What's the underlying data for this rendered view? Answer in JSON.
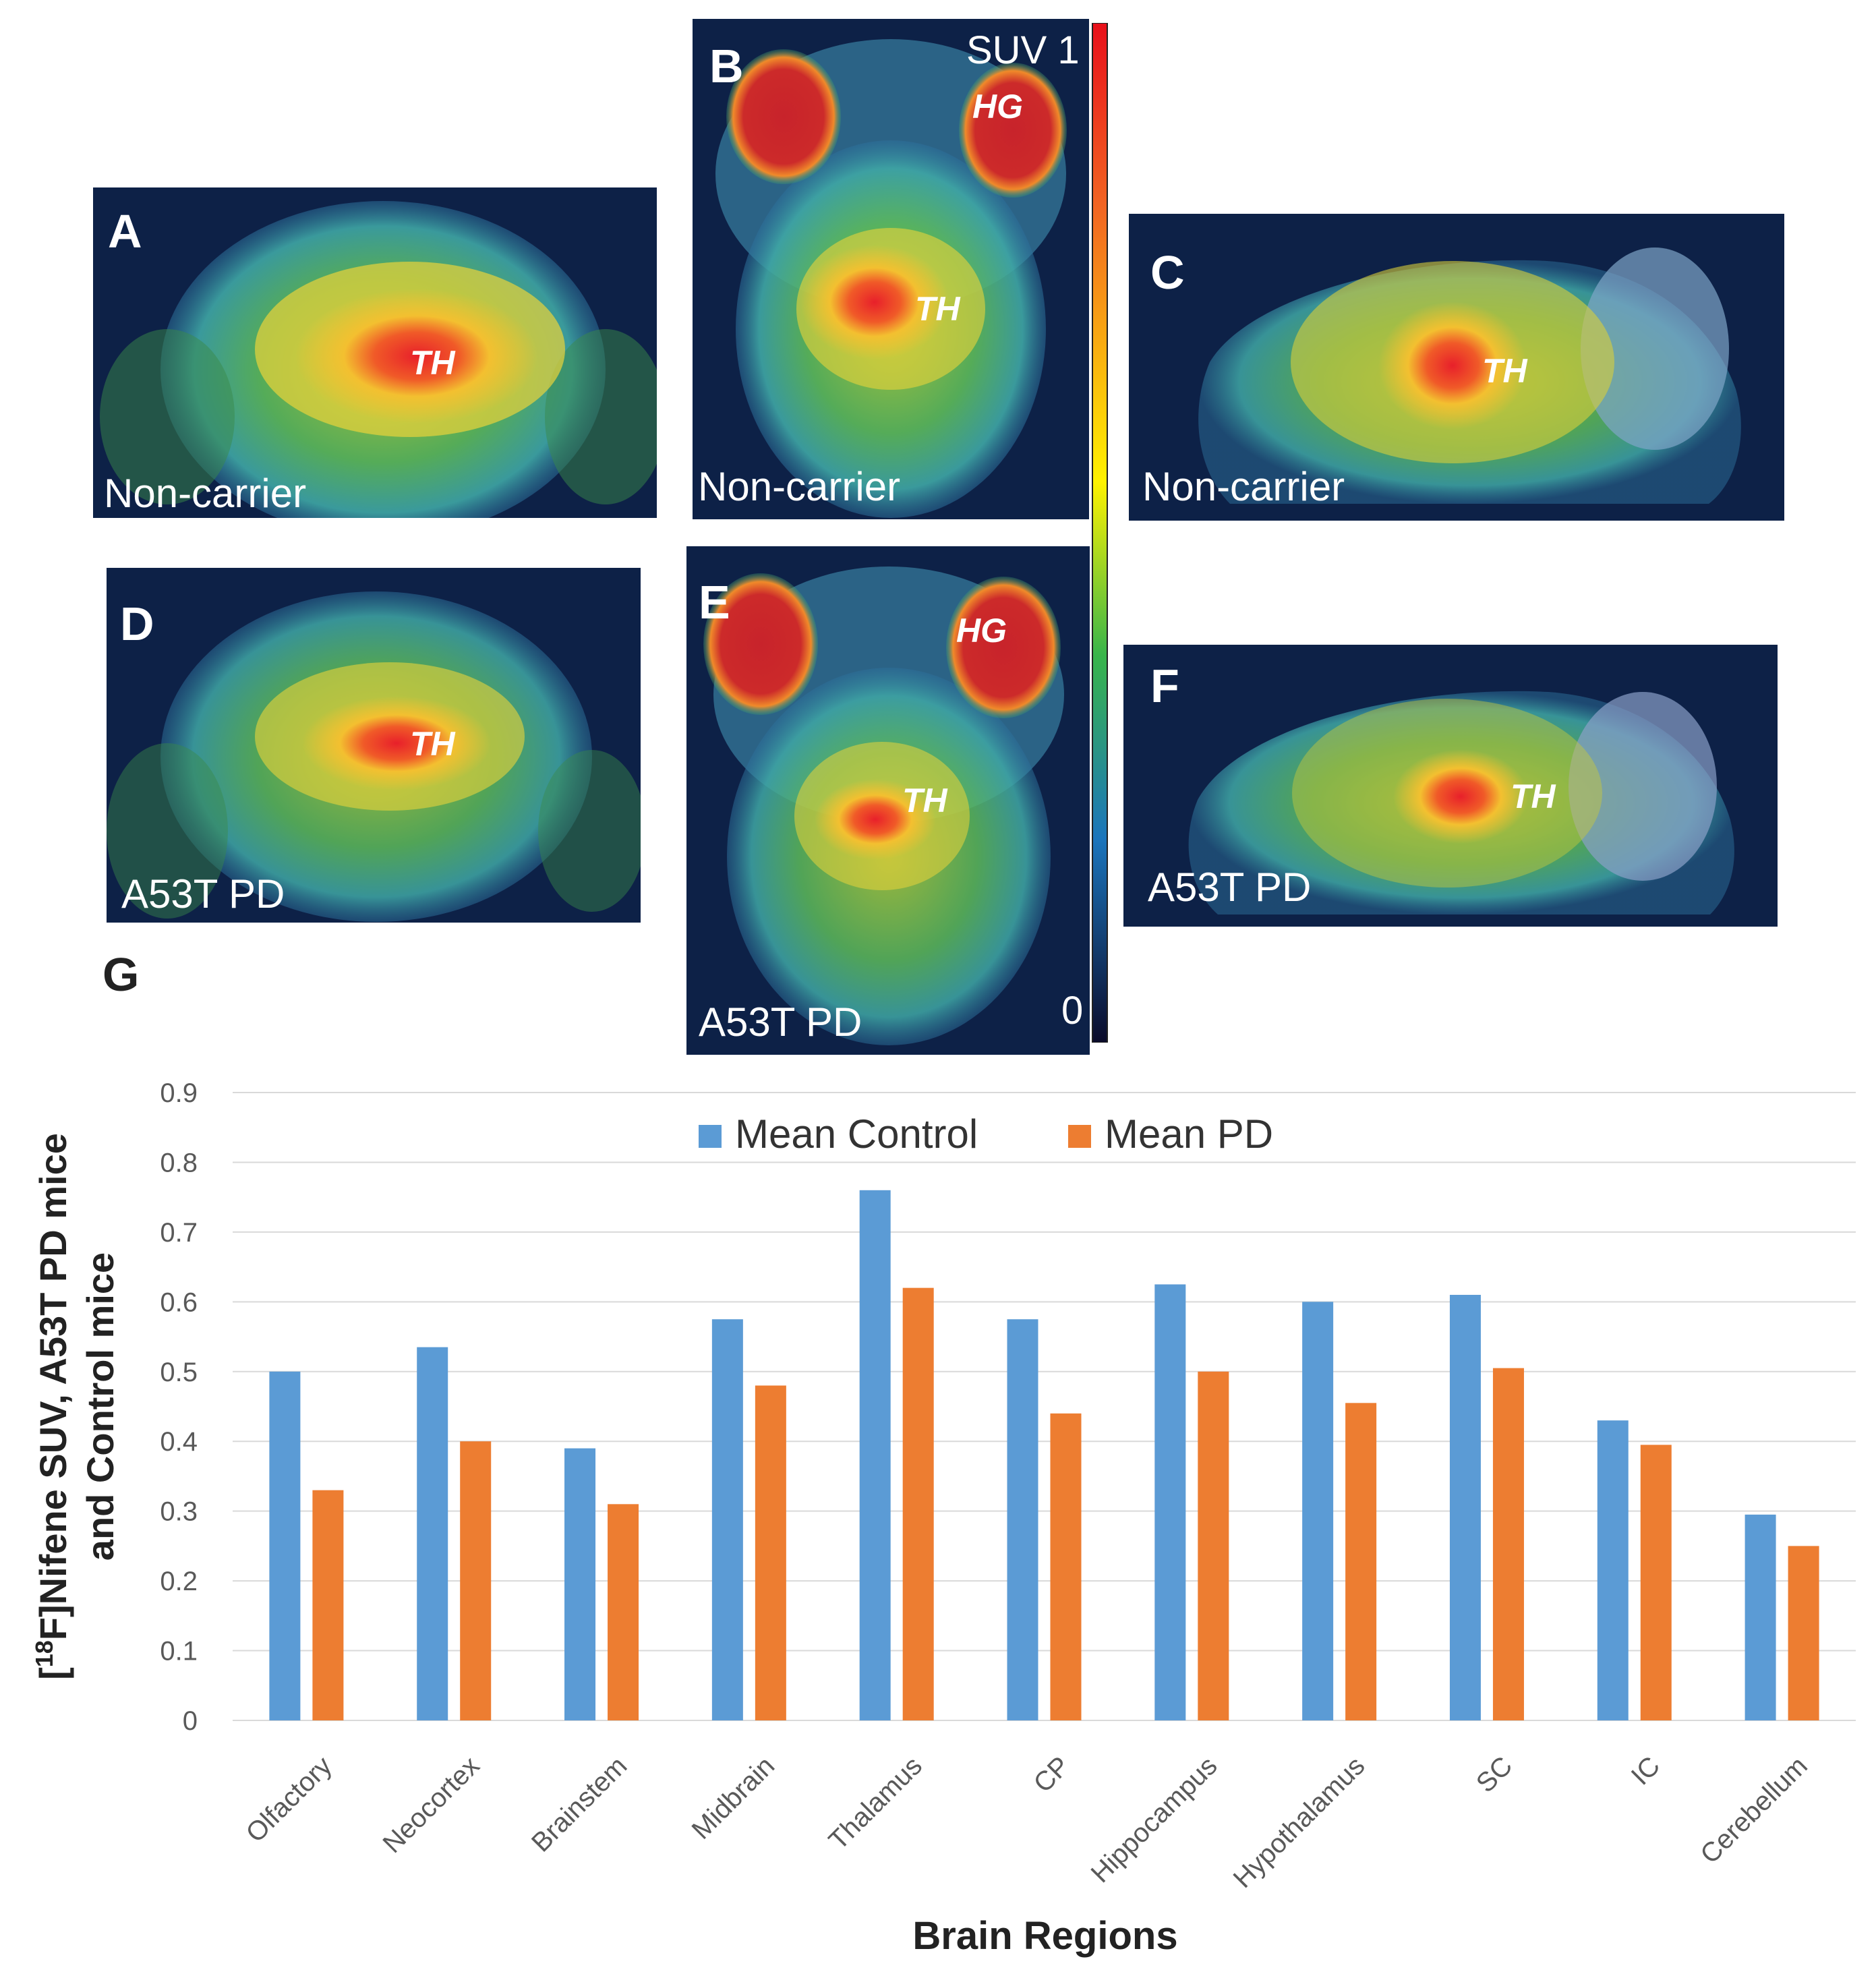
{
  "panels": [
    {
      "letter": "A",
      "group": "Non-carrier",
      "regions": [
        "TH"
      ]
    },
    {
      "letter": "B",
      "group": "Non-carrier",
      "regions": [
        "HG",
        "TH"
      ]
    },
    {
      "letter": "C",
      "group": "Non-carrier",
      "regions": [
        "TH"
      ]
    },
    {
      "letter": "D",
      "group": "A53T PD",
      "regions": [
        "TH"
      ]
    },
    {
      "letter": "E",
      "group": "A53T PD",
      "regions": [
        "HG",
        "TH"
      ]
    },
    {
      "letter": "F",
      "group": "A53T PD",
      "regions": [
        "TH"
      ]
    }
  ],
  "colorbar": {
    "label": "SUV 1",
    "min_label": "0"
  },
  "chart_panel_letter": "G",
  "colors": {
    "control": "#5b9bd5",
    "pd": "#ed7d31",
    "grid": "#d9d9d9",
    "axis_text": "#595959"
  },
  "chart_data": {
    "type": "bar",
    "title": "",
    "xlabel": "Brain Regions",
    "ylabel_lines": [
      "[18F]Nifene SUV, A53T PD mice",
      "and Control mice"
    ],
    "ylim": [
      0,
      0.9
    ],
    "yticks": [
      "0",
      "0.1",
      "0.2",
      "0.3",
      "0.4",
      "0.5",
      "0.6",
      "0.7",
      "0.8",
      "0.9"
    ],
    "legend_position": "top-center",
    "categories": [
      "Olfactory",
      "Neocortex",
      "Brainstem",
      "Midbrain",
      "Thalamus",
      "CP",
      "Hippocampus",
      "Hypothalamus",
      "SC",
      "IC",
      "Cerebellum"
    ],
    "series": [
      {
        "name": "Mean Control",
        "values": [
          0.5,
          0.535,
          0.39,
          0.575,
          0.76,
          0.575,
          0.625,
          0.6,
          0.61,
          0.43,
          0.295
        ]
      },
      {
        "name": "Mean PD",
        "values": [
          0.33,
          0.4,
          0.31,
          0.48,
          0.62,
          0.44,
          0.5,
          0.455,
          0.505,
          0.395,
          0.25
        ]
      }
    ]
  }
}
